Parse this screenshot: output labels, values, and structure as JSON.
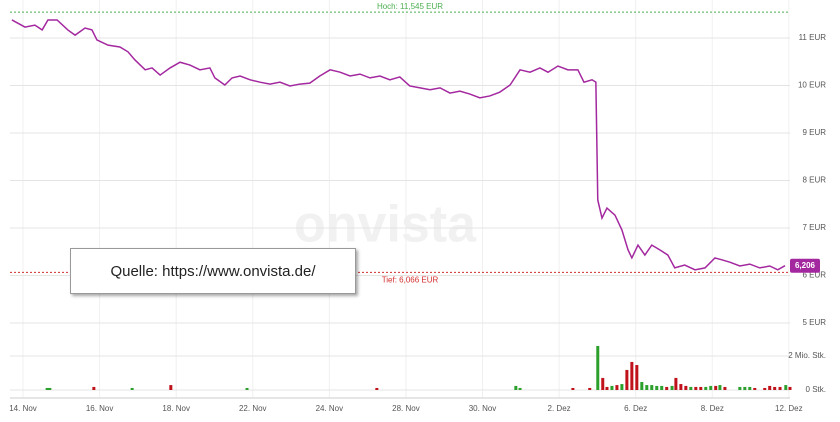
{
  "chart_data": {
    "type": "line",
    "watermark": "onvista",
    "source_note": "Quelle: https://www.onvista.de/",
    "xlim": [
      -0.34,
      20.03
    ],
    "xticks": [
      {
        "value": 0,
        "label": "14. Nov"
      },
      {
        "value": 2,
        "label": "16. Nov"
      },
      {
        "value": 4,
        "label": "18. Nov"
      },
      {
        "value": 6,
        "label": "22. Nov"
      },
      {
        "value": 8,
        "label": "24. Nov"
      },
      {
        "value": 10,
        "label": "28. Nov"
      },
      {
        "value": 12,
        "label": "30. Nov"
      },
      {
        "value": 14,
        "label": "2. Dez"
      },
      {
        "value": 16,
        "label": "6. Dez"
      },
      {
        "value": 18,
        "label": "8. Dez"
      },
      {
        "value": 20,
        "label": "12. Dez"
      }
    ],
    "ylim": [
      5,
      11.8
    ],
    "yticks": [
      {
        "value": 5,
        "label": "5 EUR"
      },
      {
        "value": 6,
        "label": "6 EUR"
      },
      {
        "value": 7,
        "label": "7 EUR"
      },
      {
        "value": 8,
        "label": "8 EUR"
      },
      {
        "value": 9,
        "label": "9 EUR"
      },
      {
        "value": 10,
        "label": "10 EUR"
      },
      {
        "value": 11,
        "label": "11 EUR"
      }
    ],
    "grid": true,
    "high": {
      "value": 11.545,
      "label": "Hoch: 11,545 EUR",
      "color": "#4caf50"
    },
    "low": {
      "value": 6.066,
      "label": "Tief: 6,066 EUR",
      "color": "#d32f2f"
    },
    "last_price": {
      "value": 6.206,
      "label": "6,206",
      "color": "#a3289f"
    },
    "series": [
      {
        "color": "#a3289f",
        "x": [
          -0.29,
          0.05,
          0.31,
          0.5,
          0.65,
          0.89,
          1.17,
          1.36,
          1.62,
          1.8,
          1.93,
          2.22,
          2.53,
          2.74,
          2.92,
          3.19,
          3.37,
          3.58,
          3.84,
          4.1,
          4.36,
          4.62,
          4.88,
          5.01,
          5.27,
          5.46,
          5.67,
          5.93,
          6.19,
          6.45,
          6.71,
          6.97,
          7.23,
          7.49,
          7.75,
          8.02,
          8.28,
          8.54,
          8.8,
          9.06,
          9.32,
          9.58,
          9.84,
          10.1,
          10.37,
          10.63,
          10.89,
          11.15,
          11.41,
          11.67,
          11.93,
          12.19,
          12.45,
          12.72,
          12.98,
          13.24,
          13.5,
          13.71,
          13.97,
          14.23,
          14.49,
          14.65,
          14.86,
          14.96,
          15.01,
          15.12,
          15.25,
          15.46,
          15.64,
          15.8,
          15.9,
          16.06,
          16.24,
          16.42,
          16.63,
          16.84,
          17.02,
          17.28,
          17.55,
          17.81,
          18.07,
          18.25,
          18.46,
          18.72,
          18.98,
          19.24,
          19.5,
          19.71,
          19.9
        ],
        "values": [
          11.38,
          11.23,
          11.27,
          11.17,
          11.38,
          11.38,
          11.17,
          11.06,
          11.21,
          11.17,
          10.96,
          10.85,
          10.81,
          10.71,
          10.54,
          10.33,
          10.37,
          10.22,
          10.37,
          10.49,
          10.43,
          10.33,
          10.37,
          10.16,
          10.01,
          10.16,
          10.2,
          10.12,
          10.07,
          10.03,
          10.07,
          9.99,
          10.03,
          10.05,
          10.2,
          10.33,
          10.28,
          10.2,
          10.24,
          10.16,
          10.2,
          10.12,
          10.18,
          9.99,
          9.95,
          9.91,
          9.95,
          9.84,
          9.88,
          9.82,
          9.74,
          9.78,
          9.86,
          10.01,
          10.33,
          10.28,
          10.37,
          10.28,
          10.41,
          10.33,
          10.33,
          10.07,
          10.12,
          10.07,
          7.59,
          7.21,
          7.42,
          7.27,
          6.96,
          6.54,
          6.37,
          6.64,
          6.43,
          6.64,
          6.54,
          6.43,
          6.16,
          6.22,
          6.12,
          6.16,
          6.37,
          6.33,
          6.28,
          6.2,
          6.24,
          6.16,
          6.2,
          6.12,
          6.206
        ]
      }
    ],
    "volume": {
      "ylim": [
        0,
        3000000
      ],
      "yticks": [
        {
          "value": 0,
          "label": "0 Stk."
        },
        {
          "value": 2000000,
          "label": "2 Mio. Stk."
        }
      ],
      "x": [
        0.63,
        0.7,
        1.85,
        2.85,
        3.86,
        5.85,
        9.24,
        12.87,
        12.98,
        14.36,
        14.8,
        15.01,
        15.14,
        15.25,
        15.38,
        15.51,
        15.64,
        15.77,
        15.9,
        16.03,
        16.16,
        16.29,
        16.42,
        16.55,
        16.68,
        16.81,
        16.95,
        17.05,
        17.18,
        17.31,
        17.44,
        17.57,
        17.7,
        17.83,
        17.96,
        18.09,
        18.2,
        18.33,
        18.72,
        18.85,
        18.98,
        19.11,
        19.37,
        19.5,
        19.63,
        19.77,
        19.92,
        20.03
      ],
      "values": [
        120000,
        120000,
        180000,
        120000,
        290000,
        120000,
        120000,
        240000,
        120000,
        120000,
        120000,
        2590000,
        710000,
        180000,
        240000,
        290000,
        350000,
        1180000,
        1650000,
        1470000,
        470000,
        290000,
        290000,
        240000,
        240000,
        180000,
        240000,
        710000,
        350000,
        240000,
        180000,
        180000,
        180000,
        180000,
        240000,
        240000,
        290000,
        180000,
        180000,
        180000,
        180000,
        120000,
        120000,
        240000,
        180000,
        180000,
        290000,
        180000
      ],
      "colors": [
        "#2ca02c",
        "#2ca02c",
        "#c0121a",
        "#2ca02c",
        "#c0121a",
        "#2ca02c",
        "#c0121a",
        "#2ca02c",
        "#2ca02c",
        "#c0121a",
        "#c0121a",
        "#2ca02c",
        "#c0121a",
        "#c0121a",
        "#2ca02c",
        "#c0121a",
        "#2ca02c",
        "#c0121a",
        "#c0121a",
        "#c0121a",
        "#2ca02c",
        "#2ca02c",
        "#2ca02c",
        "#2ca02c",
        "#2ca02c",
        "#c0121a",
        "#2ca02c",
        "#c0121a",
        "#c0121a",
        "#c0121a",
        "#2ca02c",
        "#c0121a",
        "#c0121a",
        "#2ca02c",
        "#2ca02c",
        "#c0121a",
        "#2ca02c",
        "#c0121a",
        "#2ca02c",
        "#2ca02c",
        "#2ca02c",
        "#c0121a",
        "#c0121a",
        "#c0121a",
        "#c0121a",
        "#c0121a",
        "#2ca02c",
        "#c0121a"
      ]
    }
  }
}
